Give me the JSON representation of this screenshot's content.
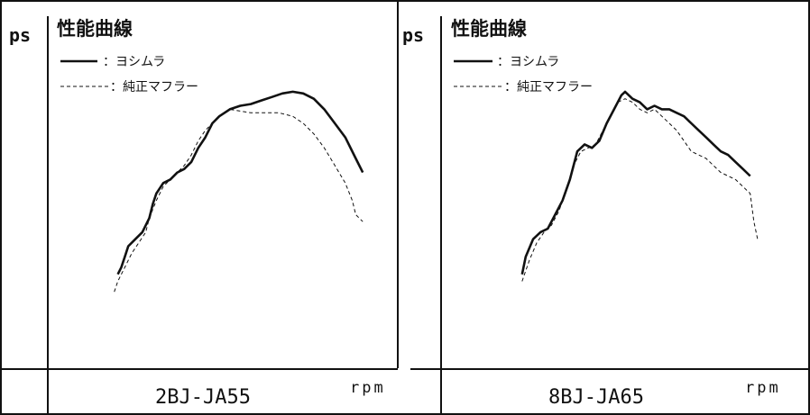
{
  "chart_data": [
    {
      "type": "line",
      "title": "性能曲線",
      "ylabel": "ps",
      "xlabel": "rpm",
      "model": "2BJ-JA55",
      "legend": [
        {
          "label": "：ヨシムラ",
          "style": "solid"
        },
        {
          "label": "：純正マフラー",
          "style": "dashed"
        }
      ],
      "series": [
        {
          "name": "ヨシムラ",
          "style": "solid",
          "points": [
            [
              0.2,
              0.27
            ],
            [
              0.21,
              0.29
            ],
            [
              0.22,
              0.32
            ],
            [
              0.23,
              0.35
            ],
            [
              0.25,
              0.37
            ],
            [
              0.27,
              0.39
            ],
            [
              0.29,
              0.43
            ],
            [
              0.3,
              0.47
            ],
            [
              0.31,
              0.5
            ],
            [
              0.33,
              0.53
            ],
            [
              0.35,
              0.54
            ],
            [
              0.37,
              0.56
            ],
            [
              0.39,
              0.57
            ],
            [
              0.41,
              0.59
            ],
            [
              0.43,
              0.63
            ],
            [
              0.45,
              0.66
            ],
            [
              0.47,
              0.7
            ],
            [
              0.49,
              0.72
            ],
            [
              0.52,
              0.74
            ],
            [
              0.55,
              0.75
            ],
            [
              0.58,
              0.755
            ],
            [
              0.61,
              0.765
            ],
            [
              0.64,
              0.775
            ],
            [
              0.67,
              0.785
            ],
            [
              0.7,
              0.79
            ],
            [
              0.73,
              0.785
            ],
            [
              0.76,
              0.77
            ],
            [
              0.79,
              0.74
            ],
            [
              0.82,
              0.7
            ],
            [
              0.85,
              0.66
            ],
            [
              0.88,
              0.6
            ],
            [
              0.9,
              0.56
            ]
          ]
        },
        {
          "name": "純正マフラー",
          "style": "dashed",
          "points": [
            [
              0.19,
              0.22
            ],
            [
              0.2,
              0.25
            ],
            [
              0.22,
              0.29
            ],
            [
              0.24,
              0.33
            ],
            [
              0.26,
              0.36
            ],
            [
              0.28,
              0.39
            ],
            [
              0.29,
              0.43
            ],
            [
              0.31,
              0.48
            ],
            [
              0.33,
              0.52
            ],
            [
              0.35,
              0.54
            ],
            [
              0.37,
              0.56
            ],
            [
              0.39,
              0.58
            ],
            [
              0.41,
              0.61
            ],
            [
              0.43,
              0.65
            ],
            [
              0.45,
              0.68
            ],
            [
              0.47,
              0.7
            ],
            [
              0.49,
              0.72
            ],
            [
              0.52,
              0.74
            ],
            [
              0.55,
              0.735
            ],
            [
              0.58,
              0.73
            ],
            [
              0.62,
              0.73
            ],
            [
              0.66,
              0.73
            ],
            [
              0.7,
              0.72
            ],
            [
              0.73,
              0.7
            ],
            [
              0.76,
              0.67
            ],
            [
              0.79,
              0.63
            ],
            [
              0.82,
              0.58
            ],
            [
              0.85,
              0.53
            ],
            [
              0.87,
              0.48
            ],
            [
              0.88,
              0.44
            ],
            [
              0.9,
              0.42
            ]
          ]
        }
      ]
    },
    {
      "type": "line",
      "title": "性能曲線",
      "ylabel": "ps",
      "xlabel": "rpm",
      "model": "8BJ-JA65",
      "legend": [
        {
          "label": "：ヨシムラ",
          "style": "solid"
        },
        {
          "label": "：純正マフラー",
          "style": "dashed"
        }
      ],
      "series": [
        {
          "name": "ヨシムラ",
          "style": "solid",
          "points": [
            [
              0.22,
              0.27
            ],
            [
              0.23,
              0.32
            ],
            [
              0.25,
              0.37
            ],
            [
              0.27,
              0.39
            ],
            [
              0.29,
              0.4
            ],
            [
              0.31,
              0.44
            ],
            [
              0.33,
              0.48
            ],
            [
              0.35,
              0.54
            ],
            [
              0.37,
              0.62
            ],
            [
              0.39,
              0.64
            ],
            [
              0.41,
              0.63
            ],
            [
              0.43,
              0.65
            ],
            [
              0.45,
              0.7
            ],
            [
              0.47,
              0.74
            ],
            [
              0.49,
              0.78
            ],
            [
              0.5,
              0.79
            ],
            [
              0.52,
              0.77
            ],
            [
              0.54,
              0.76
            ],
            [
              0.56,
              0.74
            ],
            [
              0.58,
              0.75
            ],
            [
              0.6,
              0.74
            ],
            [
              0.62,
              0.74
            ],
            [
              0.64,
              0.73
            ],
            [
              0.66,
              0.72
            ],
            [
              0.68,
              0.7
            ],
            [
              0.7,
              0.68
            ],
            [
              0.72,
              0.66
            ],
            [
              0.74,
              0.64
            ],
            [
              0.76,
              0.62
            ],
            [
              0.78,
              0.61
            ],
            [
              0.8,
              0.59
            ],
            [
              0.82,
              0.57
            ],
            [
              0.84,
              0.55
            ]
          ]
        },
        {
          "name": "純正マフラー",
          "style": "dashed",
          "points": [
            [
              0.22,
              0.25
            ],
            [
              0.24,
              0.31
            ],
            [
              0.26,
              0.36
            ],
            [
              0.28,
              0.39
            ],
            [
              0.3,
              0.41
            ],
            [
              0.32,
              0.45
            ],
            [
              0.34,
              0.51
            ],
            [
              0.36,
              0.58
            ],
            [
              0.38,
              0.62
            ],
            [
              0.4,
              0.63
            ],
            [
              0.42,
              0.64
            ],
            [
              0.44,
              0.68
            ],
            [
              0.46,
              0.72
            ],
            [
              0.48,
              0.76
            ],
            [
              0.5,
              0.77
            ],
            [
              0.52,
              0.76
            ],
            [
              0.54,
              0.74
            ],
            [
              0.56,
              0.73
            ],
            [
              0.58,
              0.74
            ],
            [
              0.6,
              0.72
            ],
            [
              0.62,
              0.7
            ],
            [
              0.64,
              0.68
            ],
            [
              0.66,
              0.65
            ],
            [
              0.68,
              0.62
            ],
            [
              0.7,
              0.61
            ],
            [
              0.72,
              0.6
            ],
            [
              0.74,
              0.58
            ],
            [
              0.76,
              0.56
            ],
            [
              0.78,
              0.55
            ],
            [
              0.8,
              0.54
            ],
            [
              0.82,
              0.52
            ],
            [
              0.84,
              0.5
            ],
            [
              0.85,
              0.42
            ],
            [
              0.86,
              0.37
            ]
          ]
        }
      ]
    }
  ]
}
